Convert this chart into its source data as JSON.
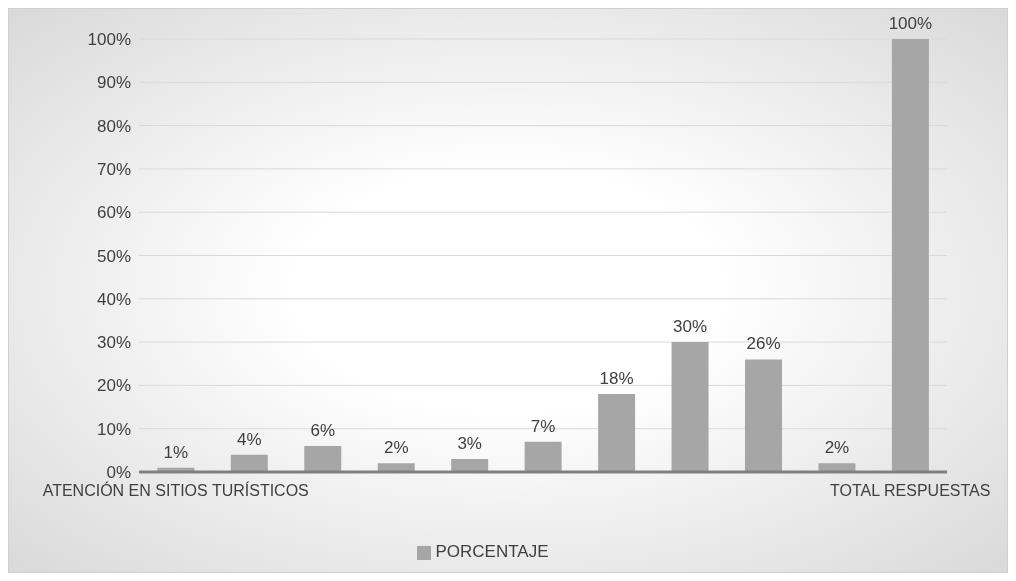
{
  "chart_data": {
    "type": "bar",
    "categories": [
      "ATENCIÓN EN SITIOS TURÍSTICOS",
      null,
      null,
      null,
      null,
      null,
      null,
      null,
      null,
      null,
      "TOTAL RESPUESTAS"
    ],
    "series": [
      {
        "name": "PORCENTAJE",
        "color": "#a6a6a6",
        "values": [
          1,
          4,
          6,
          2,
          3,
          7,
          18,
          30,
          26,
          2,
          100
        ],
        "value_labels": [
          "1%",
          "4%",
          "6%",
          "2%",
          "3%",
          "7%",
          "18%",
          "30%",
          "26%",
          "2%",
          "100%"
        ]
      }
    ],
    "ylim": [
      0,
      100
    ],
    "yticks": [
      {
        "value": 0,
        "label": "0%"
      },
      {
        "value": 10,
        "label": "10%"
      },
      {
        "value": 20,
        "label": "20%"
      },
      {
        "value": 30,
        "label": "30%"
      },
      {
        "value": 40,
        "label": "40%"
      },
      {
        "value": 50,
        "label": "50%"
      },
      {
        "value": 60,
        "label": "60%"
      },
      {
        "value": 70,
        "label": "70%"
      },
      {
        "value": 80,
        "label": "80%"
      },
      {
        "value": 90,
        "label": "90%"
      },
      {
        "value": 100,
        "label": "100%"
      }
    ],
    "grid": "y",
    "legend": "bottom"
  }
}
